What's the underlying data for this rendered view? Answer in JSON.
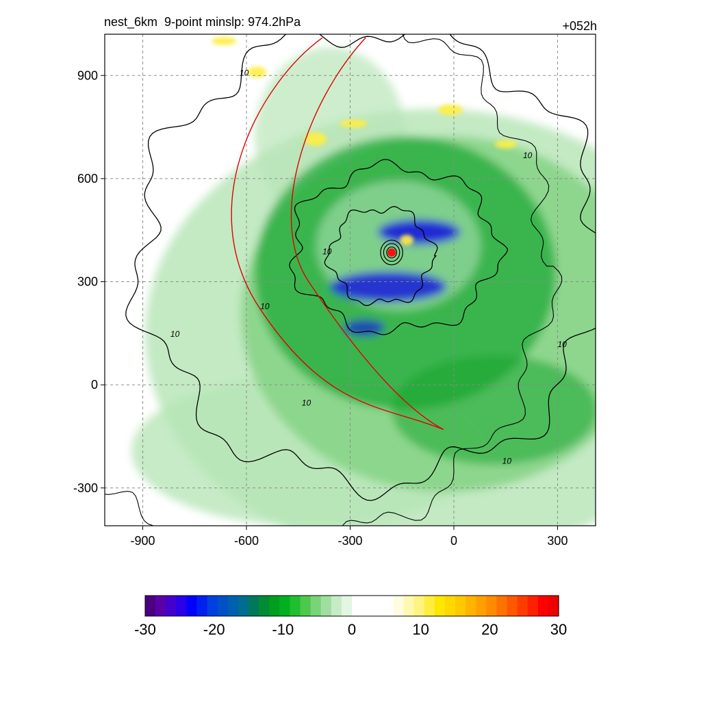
{
  "header": {
    "left_title": "nest_6km  9-point minslp: 974.2hPa",
    "right_title": "+052h"
  },
  "chart_data": {
    "type": "heatmap",
    "x_ticks": [
      -900,
      -600,
      -300,
      0,
      300
    ],
    "y_ticks": [
      900,
      600,
      300,
      0,
      -300
    ],
    "xlim": [
      -1010,
      410
    ],
    "ylim": [
      -410,
      1020
    ],
    "grid": true,
    "center": {
      "x": -180,
      "y": 385
    },
    "contour_levels": [
      10,
      20,
      30
    ],
    "contour_label": "10",
    "colorbar": {
      "ticks": [
        -30,
        -20,
        -10,
        0,
        10,
        20,
        30
      ],
      "tick_labels": [
        "-30",
        "-20",
        "-10",
        "0",
        "10",
        "20",
        "30"
      ],
      "range": [
        -30,
        30
      ],
      "colors": [
        "#4b0082",
        "#5a00a8",
        "#4400cc",
        "#2a00e8",
        "#0000ff",
        "#0020f0",
        "#0040e0",
        "#0050c8",
        "#0060b0",
        "#006c90",
        "#00785a",
        "#008c34",
        "#009e1e",
        "#00b020",
        "#20be30",
        "#4cc84c",
        "#78d478",
        "#a0dea0",
        "#c6ecc6",
        "#e2f6e2",
        "#ffffff",
        "#ffffff",
        "#ffffff",
        "#ffffff",
        "#fffce0",
        "#fff8b0",
        "#fff480",
        "#ffee40",
        "#ffe600",
        "#ffd800",
        "#ffc800",
        "#ffb400",
        "#ffa000",
        "#ff8c00",
        "#ff7200",
        "#ff5800",
        "#ff3c00",
        "#ff2000",
        "#ff0000",
        "#f00000"
      ]
    },
    "colors": {
      "strong_negative": "#1a1adc",
      "mid_negative": "#16a630",
      "weak_negative": "#b8e6b8",
      "positive": "#ffee40",
      "track": "#e00000",
      "center_marker": "#ff1010",
      "contour": "#000000"
    }
  }
}
